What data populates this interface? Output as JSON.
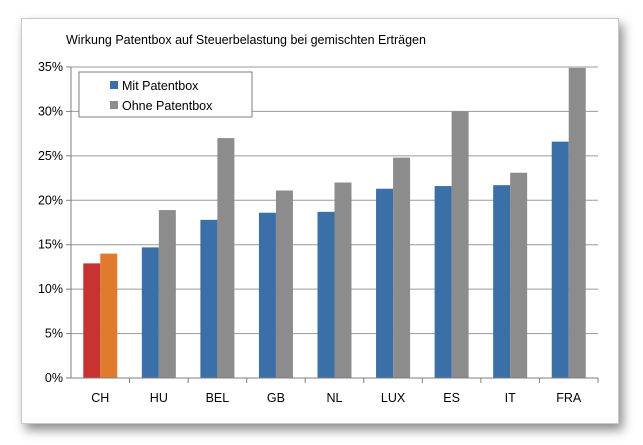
{
  "chart_data": {
    "type": "bar",
    "title": "Wirkung Patentbox auf Steuerbelastung bei gemischten Erträgen",
    "xlabel": "",
    "ylabel": "",
    "ylim": [
      0,
      35
    ],
    "yticks": [
      "0%",
      "5%",
      "10%",
      "15%",
      "20%",
      "25%",
      "30%",
      "35%"
    ],
    "grid": true,
    "legend_position": "top-left",
    "categories": [
      "CH",
      "HU",
      "BEL",
      "GB",
      "NL",
      "LUX",
      "ES",
      "IT",
      "FRA"
    ],
    "series": [
      {
        "name": "Mit Patentbox",
        "color": "#3a6fa8",
        "values": [
          12.9,
          14.7,
          17.8,
          18.6,
          18.7,
          21.3,
          21.6,
          21.7,
          26.6
        ]
      },
      {
        "name": "Ohne Patentbox",
        "color": "#8c8c8c",
        "values": [
          14.0,
          18.9,
          27.0,
          21.1,
          22.0,
          24.8,
          30.0,
          23.1,
          34.9
        ]
      }
    ],
    "highlight": {
      "category": "CH",
      "colors": [
        "#c83232",
        "#e07b2e"
      ]
    }
  }
}
